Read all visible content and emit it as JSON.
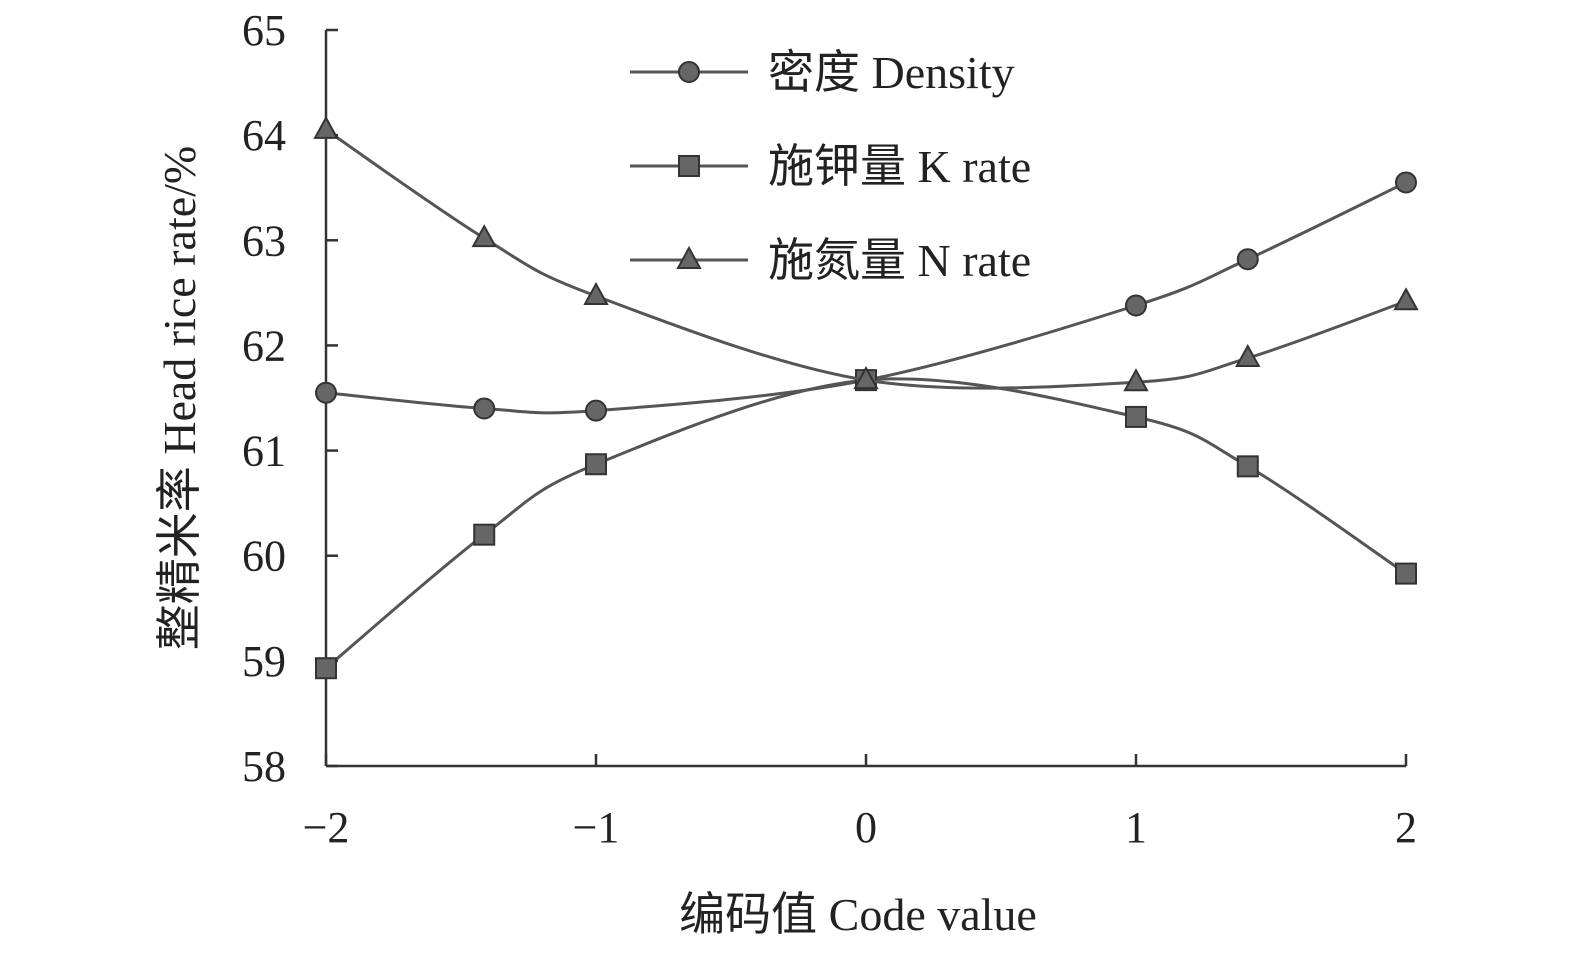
{
  "chart_data": {
    "type": "line",
    "title": "",
    "xlabel": "编码值 Code value",
    "ylabel": "整精米率 Head rice rate/%",
    "xlim": [
      -2,
      2
    ],
    "ylim": [
      58,
      65
    ],
    "x_ticks": [
      {
        "value": -2,
        "label": "−2"
      },
      {
        "value": -1,
        "label": "−1"
      },
      {
        "value": 0,
        "label": "0"
      },
      {
        "value": 1,
        "label": "1"
      },
      {
        "value": 2,
        "label": "2"
      }
    ],
    "y_ticks": [
      {
        "value": 58,
        "label": "58"
      },
      {
        "value": 59,
        "label": "59"
      },
      {
        "value": 60,
        "label": "60"
      },
      {
        "value": 61,
        "label": "61"
      },
      {
        "value": 62,
        "label": "62"
      },
      {
        "value": 63,
        "label": "63"
      },
      {
        "value": 64,
        "label": "64"
      },
      {
        "value": 65,
        "label": "65"
      }
    ],
    "grid": false,
    "legend_position": "top-center",
    "series": [
      {
        "name": "密度 Density",
        "marker": "circle",
        "color": "#555555",
        "x": [
          -2,
          -1.414,
          -1,
          0,
          1,
          1.414,
          2
        ],
        "y": [
          61.55,
          61.4,
          61.38,
          61.67,
          62.38,
          62.82,
          63.55
        ]
      },
      {
        "name": "施钾量 K rate",
        "marker": "square",
        "color": "#555555",
        "x": [
          -2,
          -1.414,
          -1,
          0,
          1,
          1.414,
          2
        ],
        "y": [
          58.93,
          60.2,
          60.87,
          61.67,
          61.32,
          60.85,
          59.83
        ]
      },
      {
        "name": "施氮量 N rate",
        "marker": "triangle",
        "color": "#555555",
        "x": [
          -2,
          -1.414,
          -1,
          0,
          1,
          1.414,
          2
        ],
        "y": [
          64.05,
          63.02,
          62.47,
          61.67,
          61.65,
          61.88,
          62.42
        ]
      }
    ]
  }
}
